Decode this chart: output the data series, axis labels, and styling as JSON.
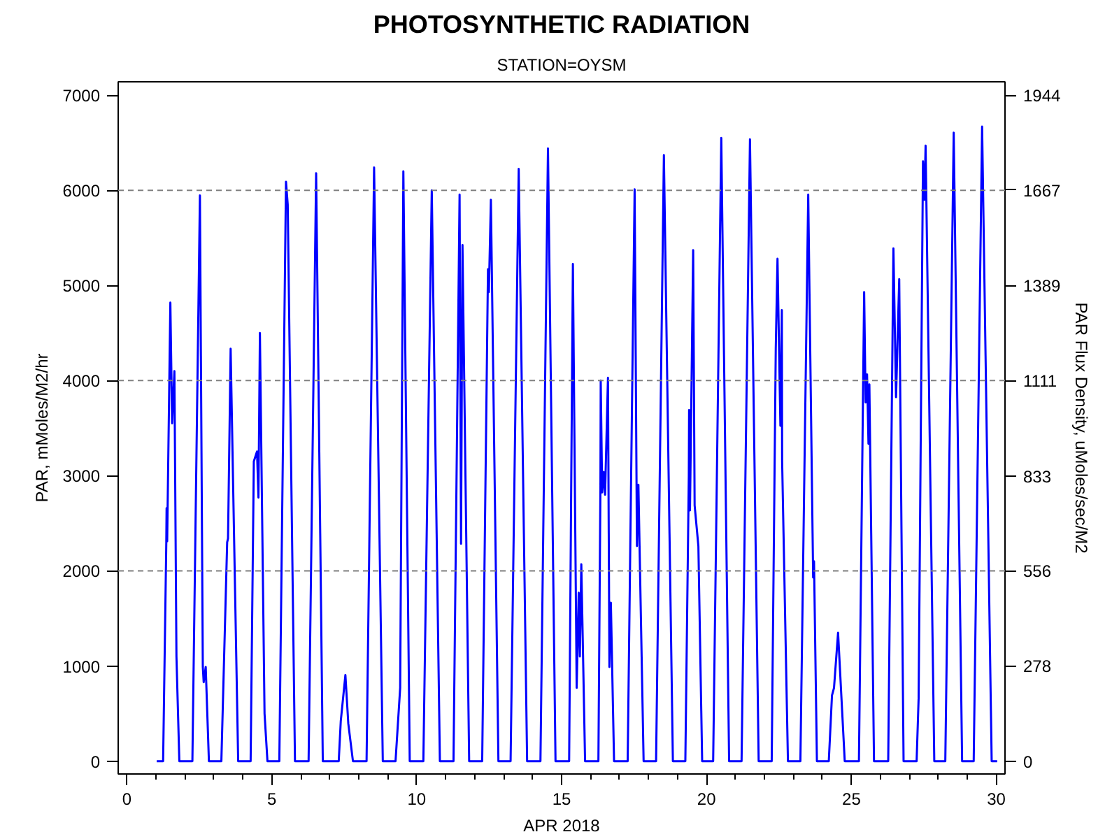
{
  "chart_data": {
    "type": "line",
    "title": "PHOTOSYNTHETIC RADIATION",
    "subtitle": "STATION=OYSM",
    "xlabel": "APR 2018",
    "ylabel": "PAR, mMoles/M2/hr",
    "y2label": "PAR Flux Density, uMoles/sec/M2",
    "xlim": [
      -0.3,
      30.3
    ],
    "xticks": [
      0,
      5,
      10,
      15,
      20,
      25,
      30
    ],
    "ylim": [
      -135,
      7140
    ],
    "yticks": [
      0,
      1000,
      2000,
      3000,
      4000,
      5000,
      6000,
      7000
    ],
    "y2lim": [
      -37.5,
      1983.3
    ],
    "y2ticks": [
      0,
      278,
      556,
      833,
      1111,
      1389,
      1667,
      1944
    ],
    "grid": false,
    "marker": "none",
    "line_style": "solid",
    "ref_lines": [
      {
        "axis": "y",
        "value": 2000,
        "color": "#808080",
        "line_style": "dashed"
      },
      {
        "axis": "y",
        "value": 4000,
        "color": "#808080",
        "line_style": "dashed"
      },
      {
        "axis": "y",
        "value": 6000,
        "color": "#808080",
        "line_style": "dashed"
      }
    ],
    "series": [
      {
        "color": "#0000ff",
        "x": [
          1.03,
          1.25,
          1.36,
          1.37,
          1.39,
          1.5,
          1.56,
          1.64,
          1.71,
          1.81,
          2.26,
          2.52,
          2.62,
          2.65,
          2.72,
          2.83,
          3.26,
          3.46,
          3.49,
          3.58,
          3.84,
          4.27,
          4.38,
          4.49,
          4.54,
          4.59,
          4.75,
          4.85,
          5.26,
          5.49,
          5.55,
          5.8,
          6.27,
          6.53,
          6.76,
          7.31,
          7.38,
          7.54,
          7.64,
          7.8,
          8.27,
          8.53,
          8.83,
          9.27,
          9.43,
          9.54,
          9.76,
          10.23,
          10.52,
          10.8,
          11.27,
          11.48,
          11.53,
          11.58,
          11.81,
          12.26,
          12.46,
          12.49,
          12.56,
          12.82,
          13.24,
          13.52,
          13.81,
          14.27,
          14.53,
          14.79,
          15.26,
          15.39,
          15.52,
          15.59,
          15.63,
          15.68,
          15.81,
          16.27,
          16.34,
          16.35,
          16.4,
          16.45,
          16.5,
          16.6,
          16.65,
          16.7,
          16.81,
          17.28,
          17.52,
          17.6,
          17.65,
          17.83,
          18.26,
          18.53,
          18.84,
          19.27,
          19.39,
          19.4,
          19.43,
          19.54,
          19.59,
          19.72,
          19.85,
          20.23,
          20.51,
          20.78,
          21.21,
          21.5,
          21.8,
          22.25,
          22.39,
          22.45,
          22.55,
          22.6,
          22.61,
          22.81,
          23.24,
          23.51,
          23.68,
          23.71,
          23.81,
          24.22,
          24.33,
          24.4,
          24.54,
          24.77,
          25.26,
          25.44,
          25.49,
          25.54,
          25.59,
          25.62,
          25.78,
          26.27,
          26.45,
          26.54,
          26.65,
          26.8,
          27.25,
          27.32,
          27.47,
          27.52,
          27.56,
          27.86,
          28.24,
          28.53,
          28.82,
          29.22,
          29.51,
          29.84,
          30.03
        ],
        "values": [
          0,
          0,
          2300,
          2660,
          2310,
          4820,
          3550,
          4100,
          1100,
          0,
          0,
          5945,
          990,
          830,
          990,
          0,
          0,
          2300,
          2340,
          4335,
          0,
          0,
          3150,
          3255,
          2770,
          4500,
          500,
          0,
          0,
          6090,
          5850,
          0,
          0,
          6180,
          0,
          0,
          420,
          905,
          395,
          0,
          0,
          6240,
          0,
          0,
          770,
          6200,
          0,
          0,
          6000,
          0,
          0,
          5955,
          2285,
          5425,
          0,
          0,
          5170,
          4930,
          5900,
          0,
          0,
          6225,
          0,
          0,
          6440,
          0,
          0,
          5225,
          770,
          1770,
          1100,
          2070,
          0,
          0,
          2900,
          4000,
          2825,
          3040,
          2800,
          4030,
          990,
          1665,
          0,
          0,
          6010,
          2260,
          2905,
          0,
          0,
          6370,
          0,
          0,
          3000,
          3690,
          2635,
          5370,
          2690,
          2260,
          0,
          0,
          6550,
          0,
          0,
          6535,
          0,
          0,
          4335,
          5280,
          3525,
          4740,
          3150,
          0,
          0,
          5955,
          1930,
          2100,
          0,
          0,
          690,
          770,
          1350,
          0,
          0,
          4930,
          3770,
          4065,
          3335,
          3960,
          0,
          0,
          5390,
          3825,
          5065,
          0,
          0,
          665,
          6305,
          5900,
          6470,
          0,
          0,
          6605,
          0,
          0,
          6670,
          0,
          0
        ]
      }
    ]
  }
}
